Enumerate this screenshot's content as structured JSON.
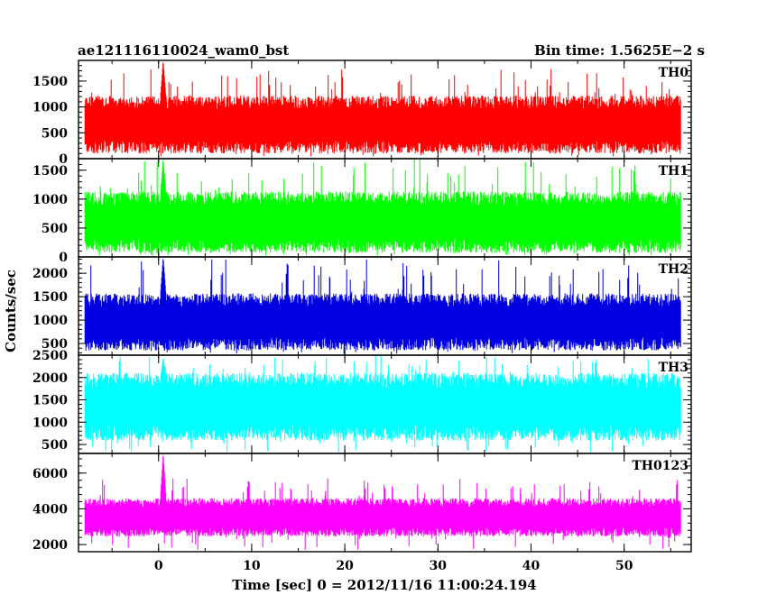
{
  "chart_data": {
    "type": "line",
    "title_left": "ae121116110024_wam0_bst",
    "title_right": "Bin time: 1.5625E−2 s",
    "xlabel": "Time [sec] 0 = 2012/11/16 11:00:24.194",
    "ylabel": "Counts/sec",
    "xlim": [
      -8.6,
      57.2
    ],
    "x_ticks": [
      "0",
      "10",
      "20",
      "30",
      "40",
      "50"
    ],
    "x_tick_values": [
      0,
      10,
      20,
      30,
      40,
      50
    ],
    "data_x_range": [
      -7.9,
      56.1
    ],
    "panels": [
      {
        "name": "TH0",
        "color": "#ff0000",
        "ylim": [
          0,
          1900
        ],
        "y_ticks": [
          "0",
          "500",
          "1000",
          "1500"
        ],
        "y_tick_values": [
          0,
          500,
          1000,
          1500
        ],
        "band": [
          230,
          1090
        ],
        "mean": 680,
        "extreme": [
          40,
          1750
        ],
        "spike": {
          "x": 0.5,
          "peak": 1900
        }
      },
      {
        "name": "TH1",
        "color": "#00ff00",
        "ylim": [
          0,
          1700
        ],
        "y_ticks": [
          "0",
          "500",
          "1000",
          "1500"
        ],
        "y_tick_values": [
          0,
          500,
          1000,
          1500
        ],
        "band": [
          190,
          1010
        ],
        "mean": 600,
        "extreme": [
          20,
          1700
        ],
        "spike": {
          "x": 0.5,
          "peak": 1700
        }
      },
      {
        "name": "TH2",
        "color": "#0000e0",
        "ylim": [
          250,
          2350
        ],
        "y_ticks": [
          "500",
          "1000",
          "1500",
          "2000"
        ],
        "y_tick_values": [
          500,
          1000,
          1500,
          2000
        ],
        "band": [
          490,
          1430
        ],
        "mean": 950,
        "extreme": [
          280,
          2300
        ],
        "spike": {
          "x": 0.5,
          "peak": 2350
        }
      },
      {
        "name": "TH3",
        "color": "#00ffff",
        "ylim": [
          300,
          2500
        ],
        "y_ticks": [
          "500",
          "1000",
          "1500",
          "2000",
          "2500"
        ],
        "y_tick_values": [
          500,
          1000,
          1500,
          2000,
          2500
        ],
        "band": [
          760,
          1930
        ],
        "mean": 1340,
        "extreme": [
          320,
          2500
        ],
        "spike": {
          "x": 0.5,
          "peak": 2450
        }
      },
      {
        "name": "TH0123",
        "color": "#ff00ff",
        "ylim": [
          1600,
          7100
        ],
        "y_ticks": [
          "2000",
          "4000",
          "6000"
        ],
        "y_tick_values": [
          2000,
          4000,
          6000
        ],
        "band": [
          2700,
          4350
        ],
        "mean": 3500,
        "extreme": [
          1700,
          5700
        ],
        "spike": {
          "x": 0.5,
          "peak": 7100
        }
      }
    ]
  }
}
